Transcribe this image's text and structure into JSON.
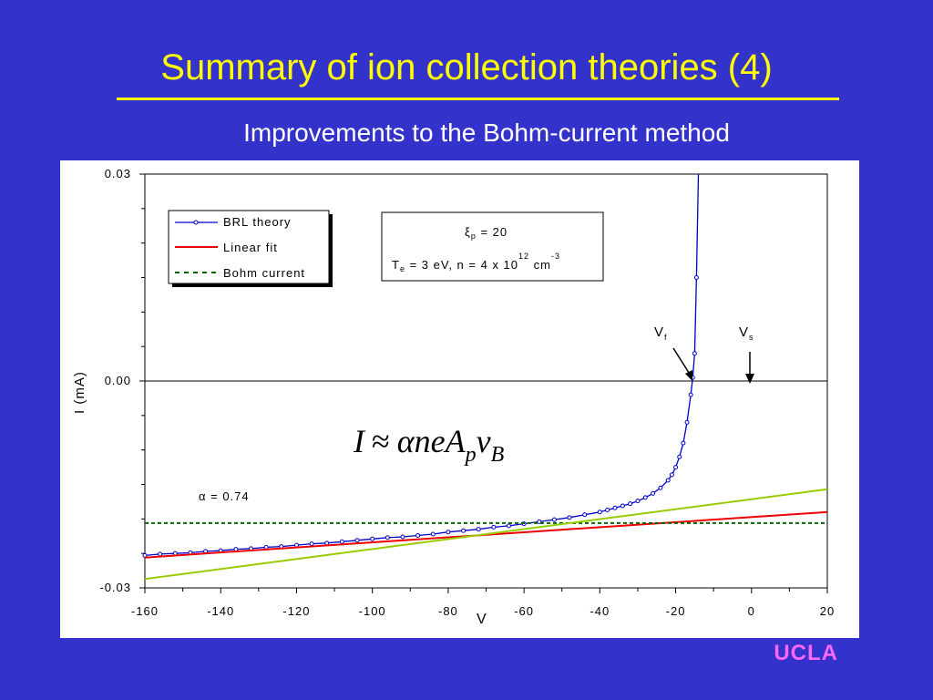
{
  "slide": {
    "title": "Summary of ion collection theories (4)",
    "subtitle": "Improvements to the Bohm-current method",
    "logo": "UCLA",
    "colors": {
      "background": "#3333cc",
      "title": "#ffff00",
      "logo": "#ff66ff"
    }
  },
  "chart_data": {
    "type": "line",
    "title": "",
    "xlabel": "V",
    "ylabel": "I (mA)",
    "xlim": [
      -160,
      20
    ],
    "ylim": [
      -0.03,
      0.03
    ],
    "x_ticks": [
      "-160",
      "-140",
      "-120",
      "-100",
      "-80",
      "-60",
      "-40",
      "-20",
      "0",
      "20"
    ],
    "y_ticks": [
      "0.03",
      "0.00",
      "-0.03"
    ],
    "grid": false,
    "legend_placement": "top-left",
    "series": [
      {
        "name": "BRL theory",
        "style": "line-with-markers",
        "color": "#0000cc",
        "x": [
          -160,
          -156,
          -152,
          -148,
          -144,
          -140,
          -136,
          -132,
          -128,
          -124,
          -120,
          -116,
          -112,
          -108,
          -104,
          -100,
          -96,
          -92,
          -88,
          -84,
          -80,
          -76,
          -72,
          -68,
          -64,
          -60,
          -56,
          -52,
          -48,
          -44,
          -40,
          -38,
          -36,
          -34,
          -32,
          -30,
          -28,
          -26,
          -24,
          -22,
          -21,
          -20,
          -19,
          -18,
          -17,
          -16,
          -15.5,
          -15,
          -14.5,
          -14
        ],
        "y": [
          -0.0253,
          -0.0251,
          -0.025,
          -0.0249,
          -0.0247,
          -0.0246,
          -0.0244,
          -0.0243,
          -0.0241,
          -0.024,
          -0.0238,
          -0.0236,
          -0.0235,
          -0.0233,
          -0.0231,
          -0.0229,
          -0.0227,
          -0.0226,
          -0.0224,
          -0.0222,
          -0.0219,
          -0.0217,
          -0.0215,
          -0.0212,
          -0.021,
          -0.0207,
          -0.0204,
          -0.0201,
          -0.0198,
          -0.0194,
          -0.019,
          -0.0187,
          -0.0184,
          -0.0181,
          -0.0178,
          -0.0174,
          -0.0169,
          -0.0163,
          -0.0155,
          -0.0144,
          -0.0136,
          -0.0125,
          -0.011,
          -0.009,
          -0.006,
          -0.002,
          0.0005,
          0.004,
          0.015,
          0.03
        ]
      },
      {
        "name": "Linear fit",
        "style": "line",
        "color": "#ee0000",
        "x": [
          -160,
          20
        ],
        "y": [
          -0.0256,
          -0.019
        ]
      },
      {
        "name": "Bohm current",
        "style": "dashed",
        "color": "#006600",
        "x": [
          -160,
          20
        ],
        "y": [
          -0.0206,
          -0.0206
        ]
      },
      {
        "name": "",
        "style": "line",
        "color": "#99cc00",
        "x": [
          -160,
          20
        ],
        "y": [
          -0.0287,
          -0.0157
        ]
      }
    ],
    "zero_line": 0.0,
    "info_box": {
      "line1_symbol": "ξ",
      "line1_sub": "p",
      "line1_rest": " = 20",
      "line2_a": "T",
      "line2_sub": "e",
      "line2_b": " = 3 eV, n = 4 x 10",
      "line2_exp": "12",
      "line2_c": " cm",
      "line2_exp2": "-3"
    },
    "annotations": {
      "vf": {
        "label": "V",
        "sub": "f",
        "x": -15.5,
        "y": 0.0
      },
      "vs": {
        "label": "V",
        "sub": "s",
        "x": 0,
        "y": 0.0
      },
      "alpha_symbol": "α",
      "alpha_rest": " = 0.74",
      "formula": {
        "I": "I",
        "approx": "≈",
        "alpha": "α",
        "neA": "neA",
        "p": "p",
        "v": "v",
        "B": "B"
      }
    }
  }
}
